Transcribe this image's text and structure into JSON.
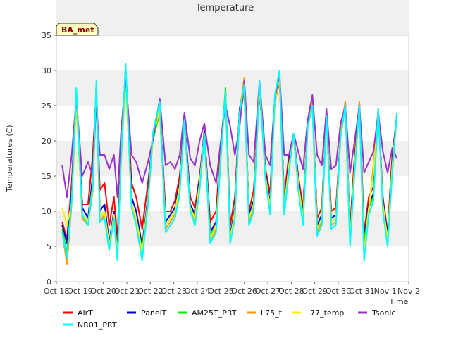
{
  "chart_data": {
    "type": "line",
    "title": "Temperature",
    "xlabel": "Time",
    "ylabel": "Temperatures (C)",
    "badge": "BA_met",
    "ylim": [
      0,
      35
    ],
    "yticks": [
      0,
      5,
      10,
      15,
      20,
      25,
      30,
      35
    ],
    "xlim": [
      0,
      15
    ],
    "xticks": [
      {
        "day": 0,
        "label": "Oct 18"
      },
      {
        "day": 1,
        "label": "Oct 19"
      },
      {
        "day": 2,
        "label": "Oct 20"
      },
      {
        "day": 3,
        "label": "Oct 21"
      },
      {
        "day": 4,
        "label": "Oct 22"
      },
      {
        "day": 5,
        "label": "Oct 23"
      },
      {
        "day": 6,
        "label": "Oct 24"
      },
      {
        "day": 7,
        "label": "Oct 25"
      },
      {
        "day": 8,
        "label": "Oct 26"
      },
      {
        "day": 9,
        "label": "Oct 27"
      },
      {
        "day": 10,
        "label": "Oct 28"
      },
      {
        "day": 11,
        "label": "Oct 29"
      },
      {
        "day": 12,
        "label": "Oct 30"
      },
      {
        "day": 13,
        "label": "Oct 31"
      },
      {
        "day": 14,
        "label": "Nov 1"
      },
      {
        "day": 15,
        "label": "Nov 2"
      }
    ],
    "grid_bands": true,
    "legend_position": "bottom",
    "series": [
      {
        "name": "AirT",
        "color": "#ff0000",
        "x": [
          0.25,
          0.45,
          0.65,
          0.85,
          1.1,
          1.35,
          1.55,
          1.7,
          1.85,
          2.05,
          2.25,
          2.45,
          2.6,
          2.75,
          2.95,
          3.2,
          3.4,
          3.65,
          3.9,
          4.1,
          4.4,
          4.65,
          4.85,
          5.05,
          5.25,
          5.45,
          5.7,
          5.9,
          6.1,
          6.3,
          6.55,
          6.8,
          7.0,
          7.2,
          7.4,
          7.6,
          7.8,
          8.0,
          8.2,
          8.4,
          8.65,
          8.9,
          9.1,
          9.3,
          9.5,
          9.7,
          9.9,
          10.1,
          10.3,
          10.5,
          10.7,
          10.9,
          11.1,
          11.3,
          11.5,
          11.7,
          11.9,
          12.1,
          12.3,
          12.5,
          12.7,
          12.9,
          13.1,
          13.3,
          13.5,
          13.7,
          13.9,
          14.1,
          14.3,
          14.5
        ],
        "y": [
          8.5,
          6.0,
          14.0,
          26.0,
          11.0,
          11.0,
          18.0,
          27.0,
          13.0,
          14.0,
          8.0,
          12.0,
          6.0,
          20.0,
          29.5,
          14.0,
          12.0,
          7.5,
          14.0,
          20.0,
          24.5,
          10.0,
          10.0,
          11.5,
          15.0,
          23.0,
          12.0,
          10.5,
          15.0,
          21.0,
          8.5,
          10.0,
          19.5,
          26.5,
          8.0,
          12.0,
          24.0,
          27.0,
          10.0,
          13.0,
          27.0,
          16.0,
          12.5,
          25.5,
          28.5,
          12.0,
          18.0,
          20.5,
          15.0,
          10.5,
          22.0,
          25.0,
          9.0,
          10.5,
          23.5,
          10.0,
          10.5,
          20.5,
          25.0,
          7.5,
          18.0,
          25.0,
          7.0,
          12.0,
          13.5,
          24.0,
          12.0,
          7.0,
          18.0,
          23.5
        ]
      },
      {
        "name": "PanelT",
        "color": "#0000cc",
        "x": [
          0.25,
          0.45,
          0.65,
          0.85,
          1.1,
          1.35,
          1.55,
          1.7,
          1.85,
          2.05,
          2.25,
          2.45,
          2.6,
          2.75,
          2.95,
          3.2,
          3.4,
          3.65,
          3.9,
          4.1,
          4.4,
          4.65,
          4.85,
          5.05,
          5.25,
          5.45,
          5.7,
          5.9,
          6.1,
          6.3,
          6.55,
          6.8,
          7.0,
          7.2,
          7.4,
          7.6,
          7.8,
          8.0,
          8.2,
          8.4,
          8.65,
          8.9,
          9.1,
          9.3,
          9.5,
          9.7,
          9.9,
          10.1,
          10.3,
          10.5,
          10.7,
          10.9,
          11.1,
          11.3,
          11.5,
          11.7,
          11.9,
          12.1,
          12.3,
          12.5,
          12.7,
          12.9,
          13.1,
          13.3,
          13.5,
          13.7,
          13.9,
          14.1,
          14.3,
          14.5
        ],
        "y": [
          8.0,
          5.5,
          12.5,
          27.0,
          10.5,
          9.0,
          15.0,
          28.0,
          10.0,
          11.0,
          5.5,
          10.0,
          4.5,
          18.0,
          30.5,
          12.0,
          10.0,
          5.0,
          12.0,
          21.0,
          25.5,
          8.5,
          9.5,
          10.5,
          14.0,
          23.5,
          11.0,
          9.5,
          14.5,
          21.5,
          7.0,
          8.5,
          18.5,
          27.0,
          6.5,
          10.5,
          24.5,
          28.0,
          9.5,
          11.5,
          28.0,
          15.5,
          11.0,
          26.0,
          29.5,
          11.0,
          17.0,
          21.0,
          14.5,
          9.5,
          22.5,
          25.5,
          8.0,
          9.5,
          24.0,
          9.0,
          9.5,
          21.0,
          25.5,
          6.5,
          17.0,
          25.5,
          6.0,
          11.0,
          12.5,
          24.5,
          11.5,
          6.5,
          17.0,
          24.0
        ]
      },
      {
        "name": "AM25T_PRT",
        "color": "#00ee00",
        "x": [
          0.25,
          0.45,
          0.65,
          0.85,
          1.1,
          1.35,
          1.55,
          1.7,
          1.85,
          2.05,
          2.25,
          2.45,
          2.6,
          2.75,
          2.95,
          3.2,
          3.4,
          3.65,
          3.9,
          4.1,
          4.4,
          4.65,
          4.85,
          5.05,
          5.25,
          5.45,
          5.7,
          5.9,
          6.1,
          6.3,
          6.55,
          6.8,
          7.0,
          7.2,
          7.4,
          7.6,
          7.8,
          8.0,
          8.2,
          8.4,
          8.65,
          8.9,
          9.1,
          9.3,
          9.5,
          9.7,
          9.9,
          10.1,
          10.3,
          10.5,
          10.7,
          10.9,
          11.1,
          11.3,
          11.5,
          11.7,
          11.9,
          12.1,
          12.3,
          12.5,
          12.7,
          12.9,
          13.1,
          13.3,
          13.5,
          13.7,
          13.9,
          14.1,
          14.3,
          14.5
        ],
        "y": [
          7.5,
          4.0,
          11.5,
          25.5,
          9.5,
          8.5,
          14.0,
          27.0,
          9.0,
          10.0,
          5.0,
          9.5,
          4.0,
          17.0,
          29.0,
          11.0,
          9.0,
          4.5,
          11.5,
          20.0,
          24.0,
          8.0,
          9.0,
          10.0,
          13.5,
          22.5,
          10.5,
          9.0,
          14.0,
          20.5,
          6.5,
          8.0,
          18.0,
          27.5,
          6.0,
          10.0,
          23.5,
          27.0,
          9.0,
          11.0,
          27.5,
          15.0,
          10.5,
          25.5,
          29.0,
          10.5,
          16.5,
          20.5,
          14.0,
          9.0,
          22.0,
          25.0,
          7.5,
          9.0,
          23.5,
          8.5,
          9.0,
          20.5,
          25.0,
          6.0,
          16.5,
          25.0,
          5.5,
          10.5,
          12.0,
          24.0,
          11.0,
          6.0,
          16.5,
          23.5
        ]
      },
      {
        "name": "li75_t",
        "color": "#ff9900",
        "x": [
          0.25,
          0.45,
          0.65,
          0.85,
          1.1,
          1.35,
          1.55,
          1.7,
          1.85,
          2.05,
          2.25,
          2.45,
          2.6,
          2.75,
          2.95,
          3.2,
          3.4,
          3.65,
          3.9,
          4.1,
          4.4,
          4.65,
          4.85,
          5.05,
          5.25,
          5.45,
          5.7,
          5.9,
          6.1,
          6.3,
          6.55,
          6.8,
          7.0,
          7.2,
          7.4,
          7.6,
          7.8,
          8.0,
          8.2,
          8.4,
          8.65,
          8.9,
          9.1,
          9.3,
          9.5,
          9.7,
          9.9,
          10.1,
          10.3,
          10.5,
          10.7,
          10.9,
          11.1,
          11.3,
          11.5,
          11.7,
          11.9,
          12.1,
          12.3,
          12.5,
          12.7,
          12.9,
          13.1,
          13.3,
          13.5,
          13.7,
          13.9,
          14.1,
          14.3,
          14.5
        ],
        "y": [
          7.0,
          2.5,
          11.0,
          26.5,
          9.0,
          8.0,
          13.0,
          28.5,
          8.5,
          9.5,
          4.5,
          9.0,
          3.0,
          17.5,
          30.0,
          10.5,
          8.5,
          3.5,
          11.0,
          20.5,
          25.0,
          7.5,
          8.5,
          9.5,
          13.0,
          23.0,
          10.0,
          8.5,
          13.5,
          21.0,
          5.5,
          7.5,
          17.5,
          27.0,
          5.5,
          9.5,
          24.0,
          29.0,
          8.5,
          10.5,
          28.5,
          14.5,
          10.0,
          26.0,
          29.5,
          10.0,
          16.0,
          21.0,
          13.5,
          8.5,
          22.5,
          25.5,
          7.0,
          8.5,
          24.0,
          8.0,
          8.5,
          21.0,
          25.5,
          5.5,
          16.0,
          25.5,
          3.5,
          10.0,
          16.5,
          24.5,
          10.5,
          5.5,
          16.0,
          24.0
        ]
      },
      {
        "name": "li77_temp",
        "color": "#ffee00",
        "x": [
          0.25,
          0.45,
          0.65,
          0.85,
          1.1,
          1.35,
          1.55,
          1.7,
          1.85,
          2.05,
          2.25,
          2.45,
          2.6,
          2.75,
          2.95,
          3.2,
          3.4,
          3.65,
          3.9,
          4.1,
          4.4,
          4.65,
          4.85,
          5.05,
          5.25,
          5.45,
          5.7,
          5.9,
          6.1,
          6.3,
          6.55,
          6.8,
          7.0,
          7.2,
          7.4,
          7.6,
          7.8,
          8.0,
          8.2,
          8.4,
          8.65,
          8.9,
          9.1,
          9.3,
          9.5,
          9.7,
          9.9,
          10.1,
          10.3,
          10.5,
          10.7,
          10.9,
          11.1,
          11.3,
          11.5,
          11.7,
          11.9,
          12.1,
          12.3,
          12.5,
          12.7,
          12.9,
          13.1,
          13.3,
          13.5,
          13.7,
          13.9,
          14.1,
          14.3,
          14.5
        ],
        "y": [
          10.5,
          8.0,
          11.0,
          26.0,
          9.5,
          8.5,
          13.5,
          28.0,
          9.0,
          10.0,
          5.0,
          9.5,
          3.5,
          17.5,
          29.5,
          11.0,
          9.0,
          4.0,
          11.5,
          20.5,
          24.5,
          8.0,
          9.0,
          10.0,
          13.5,
          22.5,
          10.5,
          9.0,
          14.0,
          21.0,
          6.0,
          8.0,
          18.0,
          26.5,
          6.0,
          10.0,
          23.5,
          28.0,
          9.0,
          11.0,
          28.0,
          15.0,
          10.5,
          25.5,
          29.0,
          10.5,
          16.5,
          20.5,
          14.0,
          9.0,
          22.0,
          25.0,
          7.5,
          9.0,
          23.5,
          8.5,
          9.0,
          20.5,
          25.0,
          6.0,
          16.5,
          25.0,
          4.0,
          10.5,
          15.5,
          24.0,
          11.0,
          6.0,
          16.5,
          23.5
        ]
      },
      {
        "name": "Tsonic",
        "color": "#9933cc",
        "x": [
          0.25,
          0.45,
          0.65,
          0.85,
          1.1,
          1.35,
          1.55,
          1.7,
          1.85,
          2.05,
          2.25,
          2.45,
          2.6,
          2.75,
          2.95,
          3.2,
          3.4,
          3.65,
          3.9,
          4.1,
          4.4,
          4.65,
          4.85,
          5.05,
          5.25,
          5.45,
          5.7,
          5.9,
          6.1,
          6.3,
          6.55,
          6.8,
          7.0,
          7.2,
          7.4,
          7.6,
          7.8,
          8.0,
          8.2,
          8.4,
          8.65,
          8.9,
          9.1,
          9.3,
          9.5,
          9.7,
          9.9,
          10.1,
          10.3,
          10.5,
          10.7,
          10.9,
          11.1,
          11.3,
          11.5,
          11.7,
          11.9,
          12.1,
          12.3,
          12.5,
          12.7,
          12.9,
          13.1,
          13.3,
          13.5,
          13.7,
          13.9,
          14.1,
          14.3,
          14.5
        ],
        "y": [
          16.5,
          12.0,
          18.0,
          26.0,
          15.0,
          17.0,
          15.0,
          25.5,
          18.0,
          18.0,
          16.0,
          18.0,
          12.0,
          21.0,
          29.0,
          18.0,
          17.0,
          14.0,
          17.0,
          20.0,
          26.0,
          16.5,
          17.0,
          16.0,
          18.0,
          24.0,
          17.5,
          16.5,
          20.0,
          22.5,
          16.5,
          14.0,
          20.0,
          25.0,
          22.0,
          18.0,
          22.0,
          28.5,
          18.0,
          17.0,
          28.5,
          18.0,
          16.5,
          26.0,
          29.5,
          18.0,
          18.0,
          21.0,
          18.5,
          16.0,
          23.0,
          26.5,
          18.0,
          16.5,
          24.5,
          16.0,
          16.5,
          22.5,
          25.0,
          15.5,
          20.0,
          25.0,
          15.5,
          17.0,
          18.5,
          24.0,
          18.5,
          15.5,
          19.0,
          17.5
        ]
      },
      {
        "name": "NR01_PRT",
        "color": "#00ffff",
        "x": [
          0.25,
          0.45,
          0.65,
          0.85,
          1.1,
          1.35,
          1.55,
          1.7,
          1.85,
          2.05,
          2.25,
          2.45,
          2.6,
          2.75,
          2.95,
          3.2,
          3.4,
          3.65,
          3.9,
          4.1,
          4.4,
          4.65,
          4.85,
          5.05,
          5.25,
          5.45,
          5.7,
          5.9,
          6.1,
          6.3,
          6.55,
          6.8,
          7.0,
          7.2,
          7.4,
          7.6,
          7.8,
          8.0,
          8.2,
          8.4,
          8.65,
          8.9,
          9.1,
          9.3,
          9.5,
          9.7,
          9.9,
          10.1,
          10.3,
          10.5,
          10.7,
          10.9,
          11.1,
          11.3,
          11.5,
          11.7,
          11.9,
          12.1,
          12.3,
          12.5,
          12.7,
          12.9,
          13.1,
          13.3,
          13.5,
          13.7,
          13.9,
          14.1,
          14.3,
          14.5
        ],
        "y": [
          7.0,
          3.5,
          11.5,
          27.5,
          9.5,
          8.0,
          13.5,
          28.5,
          8.5,
          9.0,
          4.5,
          9.0,
          3.0,
          17.5,
          31.0,
          10.5,
          8.0,
          3.0,
          11.0,
          21.0,
          25.5,
          7.0,
          8.0,
          9.0,
          12.5,
          23.0,
          10.0,
          8.0,
          13.0,
          21.0,
          5.5,
          7.0,
          17.5,
          27.0,
          5.5,
          9.0,
          24.0,
          28.0,
          8.0,
          10.0,
          28.5,
          14.5,
          9.5,
          26.5,
          30.0,
          9.5,
          15.5,
          21.0,
          13.0,
          8.0,
          22.0,
          25.0,
          6.5,
          8.0,
          23.5,
          7.5,
          8.0,
          20.5,
          25.0,
          5.0,
          15.5,
          25.0,
          3.0,
          9.5,
          11.5,
          24.5,
          10.0,
          5.0,
          15.5,
          24.0
        ]
      }
    ]
  }
}
